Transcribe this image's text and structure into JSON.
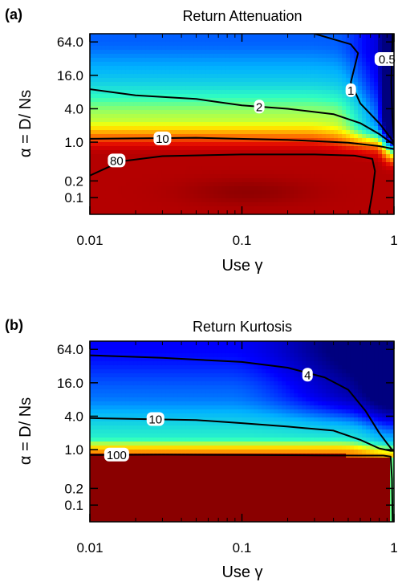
{
  "chart_data": [
    {
      "panel": "(a)",
      "type": "heatmap",
      "title": "Return Attenuation",
      "xlabel": "Use γ",
      "ylabel": "α = D/ Ns",
      "x_scale": "log",
      "y_scale": "log",
      "xlim": [
        0.01,
        1
      ],
      "ylim": [
        0.05,
        90
      ],
      "x_ticks": [
        {
          "value": 0.01,
          "label": "0.01"
        },
        {
          "value": 0.1,
          "label": "0.1"
        },
        {
          "value": 1,
          "label": "1"
        }
      ],
      "y_ticks": [
        {
          "value": 0.1,
          "label": "0.1"
        },
        {
          "value": 0.2,
          "label": "0.2"
        },
        {
          "value": 1.0,
          "label": "1.0"
        },
        {
          "value": 4.0,
          "label": "4.0"
        },
        {
          "value": 16.0,
          "label": "16.0"
        },
        {
          "value": 64.0,
          "label": "64.0"
        }
      ],
      "colormap": [
        "#00007f",
        "#0000ff",
        "#00b0ff",
        "#30ffc0",
        "#ffff00",
        "#ff8000",
        "#e00000",
        "#8a0000"
      ],
      "field_model": "attenuation",
      "contours": [
        {
          "label": "0.5",
          "label_at": [
            0.9,
            31
          ],
          "points": [
            [
              0.98,
              90
            ],
            [
              0.97,
              35
            ],
            [
              0.96,
              12
            ],
            [
              0.975,
              3
            ],
            [
              1.0,
              1.2
            ]
          ]
        },
        {
          "label": "1",
          "label_at": [
            0.52,
            8.5
          ],
          "points": [
            [
              0.3,
              90
            ],
            [
              0.52,
              58
            ],
            [
              0.58,
              40
            ],
            [
              0.52,
              12
            ],
            [
              0.6,
              5
            ],
            [
              0.8,
              2.2
            ],
            [
              1.0,
              1.0
            ]
          ]
        },
        {
          "label": "2",
          "label_at": [
            0.13,
            4.3
          ],
          "points": [
            [
              0.01,
              9.0
            ],
            [
              0.02,
              7.0
            ],
            [
              0.05,
              6.0
            ],
            [
              0.1,
              4.6
            ],
            [
              0.2,
              4.0
            ],
            [
              0.4,
              3.2
            ],
            [
              0.6,
              2.2
            ],
            [
              0.8,
              1.4
            ],
            [
              1.0,
              0.9
            ]
          ]
        },
        {
          "label": "10",
          "label_at": [
            0.03,
            1.15
          ],
          "points": [
            [
              0.01,
              1.15
            ],
            [
              0.05,
              1.2
            ],
            [
              0.2,
              1.1
            ],
            [
              0.5,
              0.98
            ],
            [
              0.8,
              0.85
            ],
            [
              1.0,
              0.75
            ]
          ]
        },
        {
          "label": "80",
          "label_at": [
            0.015,
            0.46
          ],
          "points": [
            [
              0.01,
              0.25
            ],
            [
              0.016,
              0.45
            ],
            [
              0.03,
              0.56
            ],
            [
              0.1,
              0.6
            ],
            [
              0.3,
              0.6
            ],
            [
              0.55,
              0.57
            ],
            [
              0.72,
              0.5
            ],
            [
              0.75,
              0.3
            ],
            [
              0.72,
              0.12
            ],
            [
              0.68,
              0.05
            ]
          ]
        }
      ]
    },
    {
      "panel": "(b)",
      "type": "heatmap",
      "title": "Return Kurtosis",
      "xlabel": "Use γ",
      "ylabel": "α = D/ Ns",
      "x_scale": "log",
      "y_scale": "log",
      "xlim": [
        0.01,
        1
      ],
      "ylim": [
        0.05,
        90
      ],
      "x_ticks": [
        {
          "value": 0.01,
          "label": "0.01"
        },
        {
          "value": 0.1,
          "label": "0.1"
        },
        {
          "value": 1,
          "label": "1"
        }
      ],
      "y_ticks": [
        {
          "value": 0.1,
          "label": "0.1"
        },
        {
          "value": 0.2,
          "label": "0.2"
        },
        {
          "value": 1.0,
          "label": "1.0"
        },
        {
          "value": 4.0,
          "label": "4.0"
        },
        {
          "value": 16.0,
          "label": "16.0"
        },
        {
          "value": 64.0,
          "label": "64.0"
        }
      ],
      "colormap": [
        "#00007f",
        "#0000ff",
        "#00b0ff",
        "#30ffc0",
        "#ffff00",
        "#ff8000",
        "#e00000",
        "#8a0000"
      ],
      "field_model": "kurtosis",
      "contours": [
        {
          "label": "4",
          "label_at": [
            0.27,
            22
          ],
          "points": [
            [
              0.01,
              50
            ],
            [
              0.03,
              45
            ],
            [
              0.1,
              38
            ],
            [
              0.2,
              30
            ],
            [
              0.35,
              20
            ],
            [
              0.5,
              12
            ],
            [
              0.65,
              5
            ],
            [
              0.8,
              2.0
            ],
            [
              0.9,
              1.3
            ],
            [
              0.97,
              1.0
            ]
          ]
        },
        {
          "label": "10",
          "label_at": [
            0.027,
            3.5
          ],
          "points": [
            [
              0.01,
              3.7
            ],
            [
              0.05,
              3.4
            ],
            [
              0.1,
              3.0
            ],
            [
              0.2,
              2.6
            ],
            [
              0.4,
              2.2
            ],
            [
              0.6,
              1.5
            ],
            [
              0.8,
              1.05
            ],
            [
              0.95,
              0.95
            ],
            [
              1.0,
              0.95
            ]
          ]
        },
        {
          "label": "100",
          "label_at": [
            0.015,
            0.8
          ],
          "points": [
            [
              0.01,
              0.8
            ],
            [
              0.03,
              0.81
            ],
            [
              0.1,
              0.8
            ],
            [
              0.3,
              0.79
            ],
            [
              0.6,
              0.78
            ],
            [
              0.85,
              0.78
            ],
            [
              0.95,
              0.75
            ],
            [
              0.97,
              0.3
            ],
            [
              0.98,
              0.05
            ]
          ]
        }
      ]
    }
  ]
}
